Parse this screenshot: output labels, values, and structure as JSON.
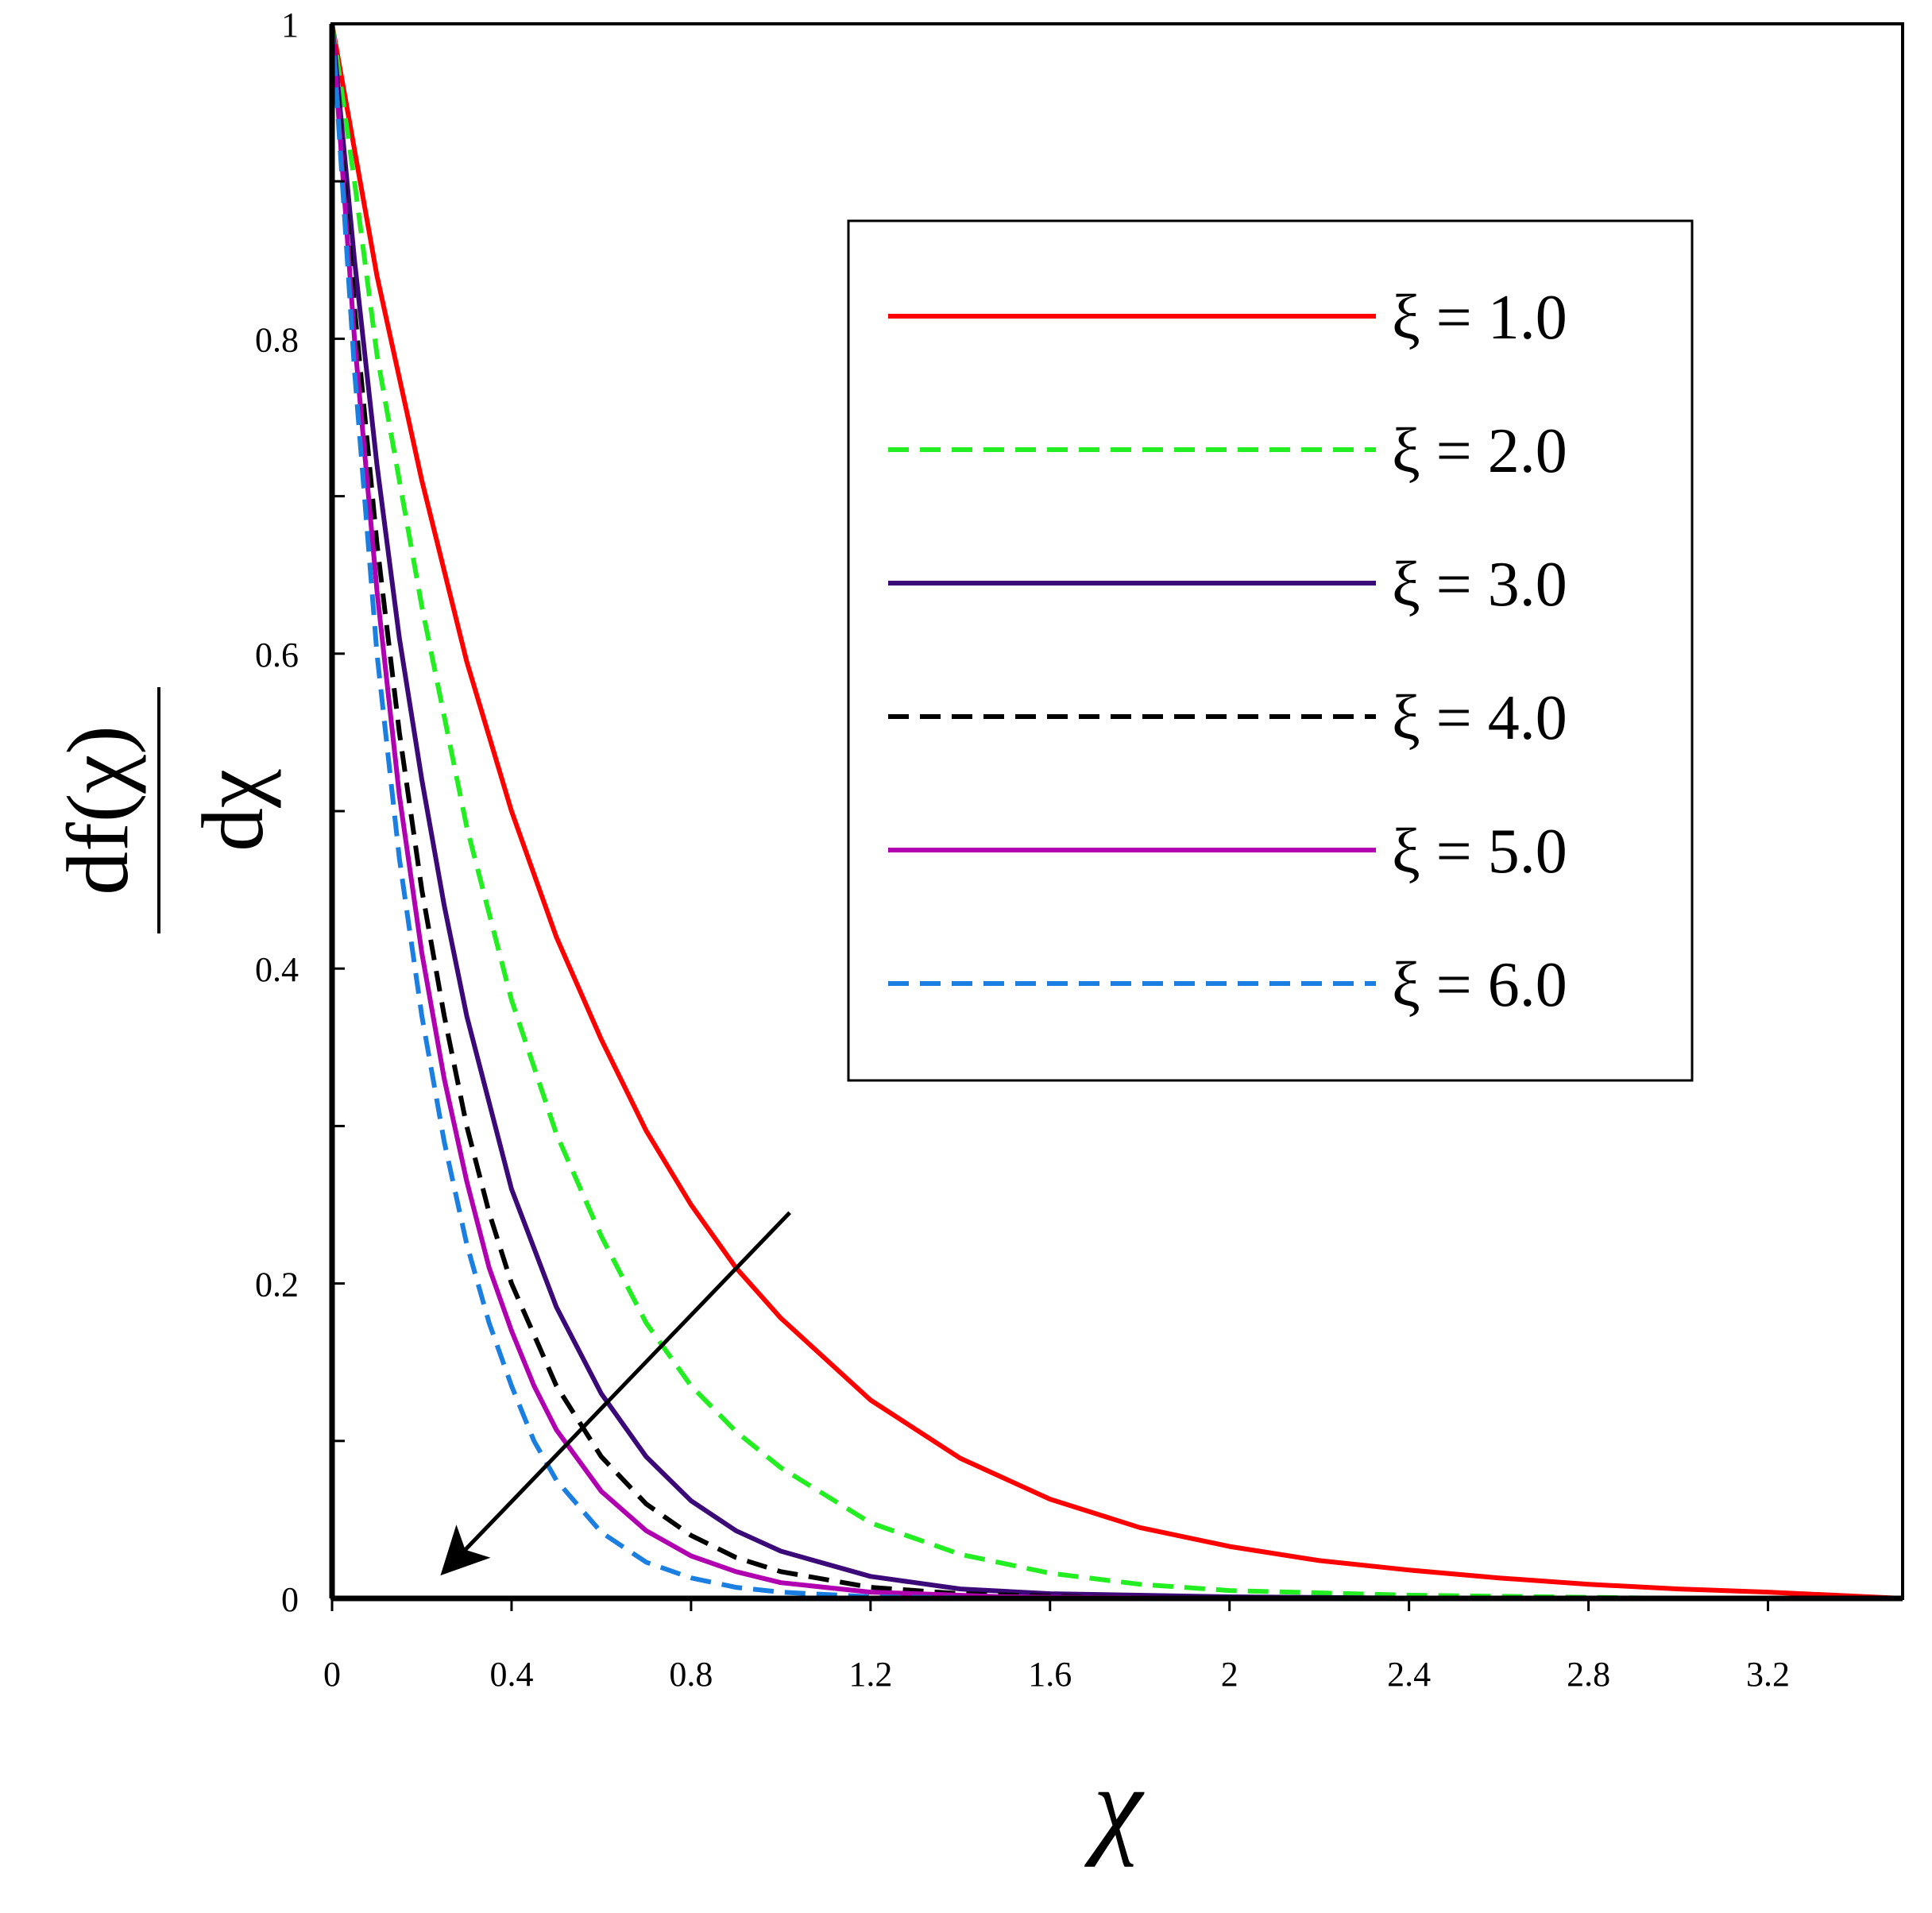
{
  "chart_data": {
    "type": "line",
    "xlabel": "χ",
    "ylabel": {
      "numerator": "df(χ)",
      "denominator": "dχ"
    },
    "xlim": [
      0,
      3.5
    ],
    "ylim": [
      0,
      1
    ],
    "x_ticks": [
      {
        "value": 0,
        "label": "0"
      },
      {
        "value": 0.4,
        "label": "0.4"
      },
      {
        "value": 0.8,
        "label": "0.8"
      },
      {
        "value": 1.2,
        "label": "1.2"
      },
      {
        "value": 1.6,
        "label": "1.6"
      },
      {
        "value": 2.0,
        "label": "2"
      },
      {
        "value": 2.4,
        "label": "2.4"
      },
      {
        "value": 2.8,
        "label": "2.8"
      },
      {
        "value": 3.2,
        "label": "3.2"
      }
    ],
    "y_ticks": [
      {
        "value": 0,
        "label": "0"
      },
      {
        "value": 0.1,
        "label": ""
      },
      {
        "value": 0.2,
        "label": "0.2"
      },
      {
        "value": 0.3,
        "label": ""
      },
      {
        "value": 0.4,
        "label": "0.4"
      },
      {
        "value": 0.5,
        "label": ""
      },
      {
        "value": 0.6,
        "label": "0.6"
      },
      {
        "value": 0.7,
        "label": ""
      },
      {
        "value": 0.8,
        "label": "0.8"
      },
      {
        "value": 0.9,
        "label": ""
      },
      {
        "value": 1.0,
        "label": "1"
      }
    ],
    "grid": false,
    "legend_position": "top-right",
    "series": [
      {
        "name": "ξ = 1.0",
        "color": "#ff0000",
        "dash": "solid",
        "x": [
          0,
          0.1,
          0.2,
          0.3,
          0.4,
          0.5,
          0.6,
          0.7,
          0.8,
          0.9,
          1.0,
          1.2,
          1.4,
          1.6,
          1.8,
          2.0,
          2.2,
          2.4,
          2.6,
          2.8,
          3.0,
          3.2,
          3.5
        ],
        "y": [
          1.0,
          0.84,
          0.71,
          0.595,
          0.5,
          0.42,
          0.355,
          0.297,
          0.25,
          0.21,
          0.178,
          0.126,
          0.089,
          0.063,
          0.045,
          0.033,
          0.024,
          0.018,
          0.013,
          0.009,
          0.006,
          0.004,
          0.0
        ]
      },
      {
        "name": "ξ = 2.0",
        "color": "#22ee22",
        "dash": "dashed",
        "x": [
          0,
          0.05,
          0.1,
          0.15,
          0.2,
          0.3,
          0.4,
          0.5,
          0.6,
          0.7,
          0.8,
          0.9,
          1.0,
          1.2,
          1.4,
          1.6,
          1.8,
          2.0,
          2.4,
          3.0,
          3.5
        ],
        "y": [
          1.0,
          0.9,
          0.79,
          0.71,
          0.63,
          0.49,
          0.38,
          0.295,
          0.23,
          0.175,
          0.135,
          0.106,
          0.083,
          0.048,
          0.028,
          0.016,
          0.009,
          0.005,
          0.002,
          0.0,
          0.0
        ]
      },
      {
        "name": "ξ = 3.0",
        "color": "#3b0a78",
        "dash": "solid",
        "x": [
          0,
          0.05,
          0.1,
          0.15,
          0.2,
          0.25,
          0.3,
          0.4,
          0.5,
          0.6,
          0.7,
          0.8,
          0.9,
          1.0,
          1.2,
          1.4,
          1.6,
          2.0,
          2.5,
          3.5
        ],
        "y": [
          1.0,
          0.85,
          0.72,
          0.61,
          0.52,
          0.44,
          0.37,
          0.26,
          0.185,
          0.13,
          0.09,
          0.062,
          0.043,
          0.03,
          0.014,
          0.006,
          0.003,
          0.001,
          0.0,
          0.0
        ]
      },
      {
        "name": "ξ = 4.0",
        "color": "#000000",
        "dash": "dashed",
        "x": [
          0,
          0.05,
          0.1,
          0.15,
          0.2,
          0.25,
          0.3,
          0.35,
          0.4,
          0.5,
          0.6,
          0.7,
          0.8,
          0.9,
          1.0,
          1.2,
          1.4,
          1.8,
          2.5,
          3.5
        ],
        "y": [
          1.0,
          0.82,
          0.67,
          0.55,
          0.45,
          0.37,
          0.3,
          0.245,
          0.2,
          0.135,
          0.09,
          0.06,
          0.04,
          0.026,
          0.017,
          0.007,
          0.003,
          0.0,
          0.0,
          0.0
        ]
      },
      {
        "name": "ξ = 5.0",
        "color": "#b000b0",
        "dash": "solid",
        "x": [
          0,
          0.05,
          0.1,
          0.15,
          0.2,
          0.25,
          0.3,
          0.35,
          0.4,
          0.45,
          0.5,
          0.6,
          0.7,
          0.8,
          0.9,
          1.0,
          1.2,
          1.5,
          2.0,
          3.5
        ],
        "y": [
          1.0,
          0.8,
          0.64,
          0.51,
          0.41,
          0.33,
          0.265,
          0.21,
          0.17,
          0.135,
          0.107,
          0.068,
          0.043,
          0.027,
          0.017,
          0.01,
          0.004,
          0.001,
          0.0,
          0.0
        ]
      },
      {
        "name": "ξ = 6.0",
        "color": "#1a7fe0",
        "dash": "dashed",
        "x": [
          0,
          0.05,
          0.1,
          0.15,
          0.2,
          0.25,
          0.3,
          0.35,
          0.4,
          0.45,
          0.5,
          0.6,
          0.7,
          0.8,
          0.9,
          1.0,
          1.2,
          1.5,
          2.0,
          3.5
        ],
        "y": [
          1.0,
          0.78,
          0.6,
          0.47,
          0.37,
          0.29,
          0.225,
          0.175,
          0.135,
          0.1,
          0.075,
          0.042,
          0.023,
          0.013,
          0.007,
          0.004,
          0.001,
          0.0,
          0.0,
          0.0
        ]
      }
    ],
    "annotations": [
      {
        "type": "arrow",
        "from": [
          1.02,
          0.245
        ],
        "to": [
          0.26,
          0.02
        ],
        "color": "#000000"
      }
    ]
  }
}
